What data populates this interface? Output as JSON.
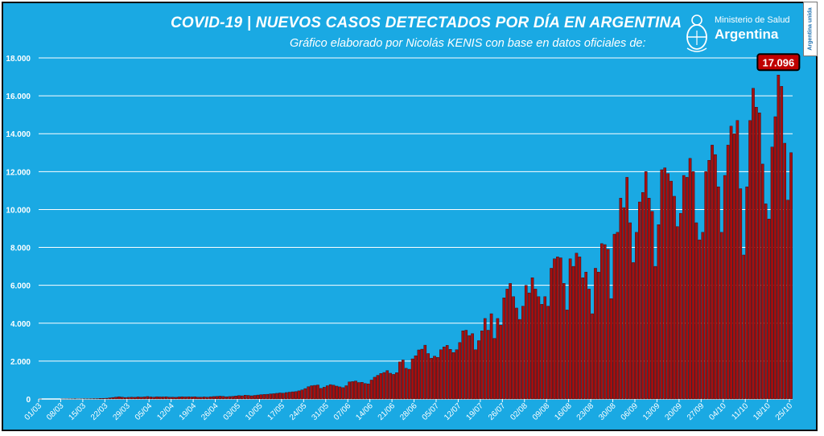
{
  "header": {
    "title": "COVID-19  |  NUEVOS CASOS DETECTADOS POR DÍA EN ARGENTINA",
    "subtitle": "Gráfico elaborado por Nicolás KENIS con base en datos oficiales de:"
  },
  "logo": {
    "ministry": "Ministerio de Salud",
    "country": "Argentina",
    "icon": "coat-of-arms-icon"
  },
  "side_badge": "Argentina unida",
  "colors": {
    "background": "#1aa9e3",
    "bar": "#a50f0f",
    "bar_edge": "#3a0000",
    "grid": "#ffffff",
    "peak_box": "#c00000"
  },
  "chart_data": {
    "type": "bar",
    "title": "COVID-19 | NUEVOS CASOS DETECTADOS POR DÍA EN ARGENTINA",
    "xlabel": "",
    "ylabel": "",
    "ylim": [
      0,
      18000
    ],
    "yticks": [
      0,
      2000,
      4000,
      6000,
      8000,
      10000,
      12000,
      14000,
      16000,
      18000
    ],
    "ytick_labels": [
      "0",
      "2.000",
      "4.000",
      "6.000",
      "8.000",
      "10.000",
      "12.000",
      "14.000",
      "16.000",
      "18.000"
    ],
    "x_start": "01/03",
    "xtick_labels": [
      "01/03",
      "08/03",
      "15/03",
      "22/03",
      "29/03",
      "05/04",
      "12/04",
      "19/04",
      "26/04",
      "03/05",
      "10/05",
      "17/05",
      "24/05",
      "31/05",
      "07/06",
      "14/06",
      "21/06",
      "28/06",
      "05/07",
      "12/07",
      "19/07",
      "26/07",
      "02/08",
      "09/08",
      "16/08",
      "23/08",
      "30/08",
      "06/09",
      "13/09",
      "20/09",
      "27/09",
      "04/10",
      "11/10",
      "18/10",
      "25/10"
    ],
    "grid": true,
    "peak_annotation": "17.096",
    "values": [
      1,
      0,
      0,
      0,
      0,
      0,
      0,
      2,
      3,
      5,
      7,
      10,
      5,
      7,
      10,
      12,
      15,
      20,
      20,
      30,
      35,
      40,
      60,
      80,
      100,
      120,
      100,
      80,
      90,
      100,
      90,
      110,
      100,
      110,
      130,
      110,
      100,
      120,
      110,
      110,
      120,
      100,
      100,
      90,
      110,
      120,
      110,
      120,
      110,
      120,
      100,
      100,
      110,
      100,
      120,
      130,
      140,
      150,
      140,
      120,
      130,
      140,
      160,
      180,
      170,
      200,
      190,
      170,
      190,
      210,
      230,
      240,
      250,
      270,
      280,
      300,
      320,
      310,
      340,
      360,
      380,
      390,
      430,
      480,
      550,
      650,
      700,
      720,
      740,
      560,
      620,
      700,
      760,
      730,
      680,
      640,
      600,
      700,
      900,
      920,
      950,
      870,
      880,
      820,
      800,
      1000,
      1150,
      1250,
      1350,
      1400,
      1500,
      1360,
      1300,
      1390,
      1960,
      2060,
      1620,
      1570,
      2120,
      2280,
      2590,
      2630,
      2840,
      2400,
      2150,
      2260,
      2200,
      2600,
      2750,
      2830,
      2620,
      2450,
      2600,
      2980,
      3600,
      3630,
      3350,
      3450,
      2600,
      3080,
      3600,
      4250,
      3630,
      4500,
      3200,
      4250,
      3900,
      5340,
      5800,
      6100,
      5400,
      4800,
      4200,
      4900,
      6000,
      5600,
      6400,
      5800,
      5400,
      5000,
      5400,
      4900,
      6900,
      7400,
      7500,
      7450,
      6100,
      4700,
      7400,
      7000,
      7700,
      7500,
      6400,
      6700,
      5800,
      4500,
      6900,
      6700,
      8200,
      8150,
      7900,
      5300,
      8700,
      8800,
      10600,
      10100,
      11700,
      9300,
      7200,
      8800,
      10400,
      10900,
      12000,
      10600,
      9900,
      7000,
      9200,
      12100,
      12200,
      11900,
      11500,
      10700,
      9100,
      9800,
      11800,
      11700,
      12700,
      12000,
      9300,
      8400,
      8800,
      12000,
      12600,
      13400,
      12900,
      11200,
      8800,
      11800,
      13400,
      14400,
      14000,
      14700,
      11100,
      7600,
      11200,
      14700,
      16400,
      15400,
      15100,
      12400,
      10300,
      9500,
      13300,
      14900,
      17096,
      16500,
      13500,
      10500,
      13000
    ],
    "series": [
      {
        "values_ref": "values"
      }
    ]
  }
}
